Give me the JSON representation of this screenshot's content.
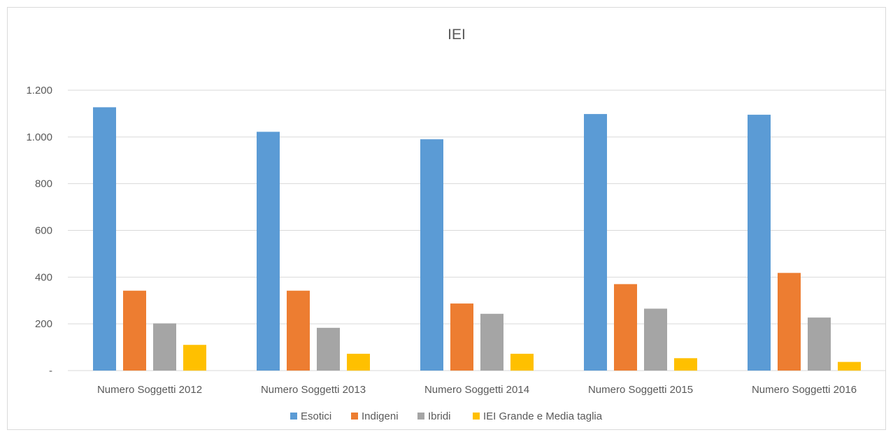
{
  "chart_data": {
    "type": "bar",
    "title": "IEI",
    "xlabel": "",
    "ylabel": "",
    "categories": [
      "Numero Soggetti 2012",
      "Numero Soggetti 2013",
      "Numero Soggetti 2014",
      "Numero Soggetti 2015",
      "Numero Soggetti 2016"
    ],
    "series": [
      {
        "name": "Esotici",
        "color": "#5b9bd5",
        "values": [
          1127,
          1022,
          990,
          1098,
          1095
        ]
      },
      {
        "name": "Indigeni",
        "color": "#ed7d31",
        "values": [
          342,
          342,
          287,
          370,
          418
        ]
      },
      {
        "name": "Ibridi",
        "color": "#a5a5a5",
        "values": [
          202,
          183,
          243,
          265,
          227
        ]
      },
      {
        "name": "IEI Grande e Media taglia",
        "color": "#ffc000",
        "values": [
          110,
          72,
          72,
          53,
          37
        ]
      }
    ],
    "ylim": [
      0,
      1200
    ],
    "yticks": [
      {
        "value": 0,
        "label": "-"
      },
      {
        "value": 200,
        "label": "200"
      },
      {
        "value": 400,
        "label": "400"
      },
      {
        "value": 600,
        "label": "600"
      },
      {
        "value": 800,
        "label": "800"
      },
      {
        "value": 1000,
        "label": "1.000"
      },
      {
        "value": 1200,
        "label": "1.200"
      }
    ],
    "grid": true,
    "legend_position": "bottom"
  }
}
